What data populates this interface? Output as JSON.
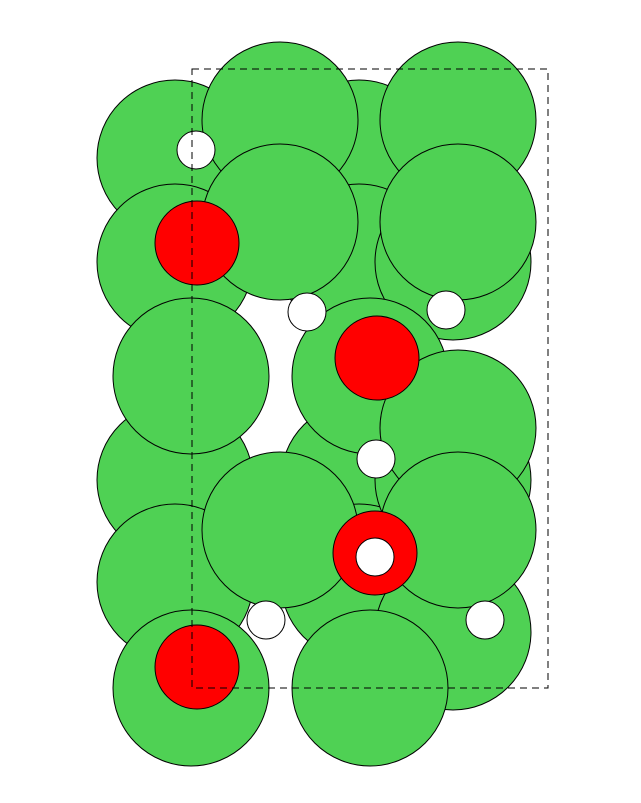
{
  "diagram": {
    "colors": {
      "large_atom": "#4fd154",
      "oxygen_atom": "#ff0000",
      "hydrogen_atom": "#ffffff",
      "outline": "#000000",
      "background": "#ffffff"
    },
    "species": [
      "large_atom",
      "oxygen_atom",
      "hydrogen_atom"
    ],
    "counts": {
      "large_atom": 20,
      "oxygen_atom": 4,
      "hydrogen_atom": 7
    },
    "unit_cell": {
      "style": "dashed"
    }
  }
}
